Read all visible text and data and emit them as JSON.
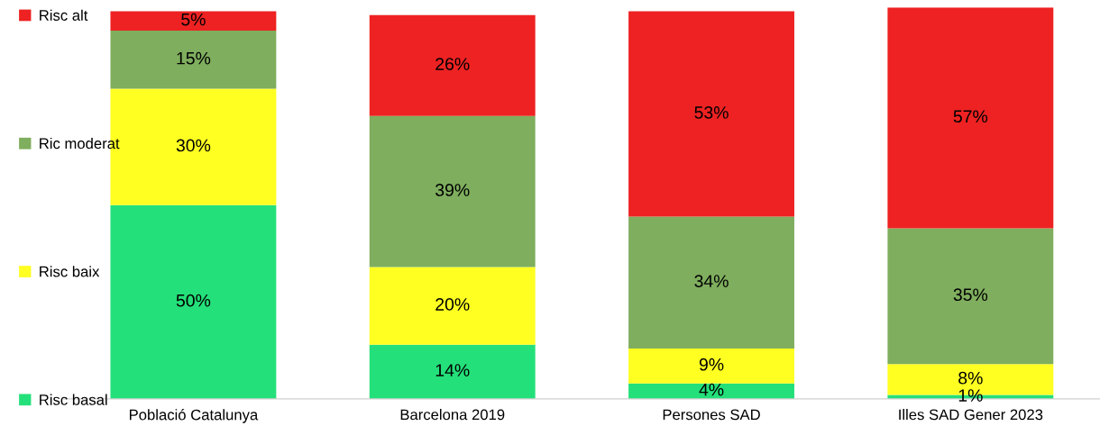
{
  "chart_data": {
    "type": "bar",
    "stacked": true,
    "legend": "left",
    "categories": [
      "Població Catalunya",
      "Barcelona 2019",
      "Persones SAD",
      "Illes SAD Gener 2023"
    ],
    "series": [
      {
        "name": "Risc basal",
        "color": "#24e07a",
        "values": [
          50,
          14,
          4,
          1
        ],
        "value_labels": [
          "50%",
          "14%",
          "4%",
          "1%"
        ]
      },
      {
        "name": "Risc baix",
        "color": "#ffff22",
        "values": [
          30,
          20,
          9,
          8
        ],
        "value_labels": [
          "30%",
          "20%",
          "9%",
          "8%"
        ]
      },
      {
        "name": "Ric moderat",
        "color": "#7fae5e",
        "values": [
          15,
          39,
          34,
          35
        ],
        "value_labels": [
          "15%",
          "39%",
          "34%",
          "35%"
        ]
      },
      {
        "name": "Risc alt",
        "color": "#ee2222",
        "values": [
          5,
          26,
          53,
          57
        ],
        "value_labels": [
          "5%",
          "26%",
          "53%",
          "57%"
        ]
      }
    ]
  }
}
